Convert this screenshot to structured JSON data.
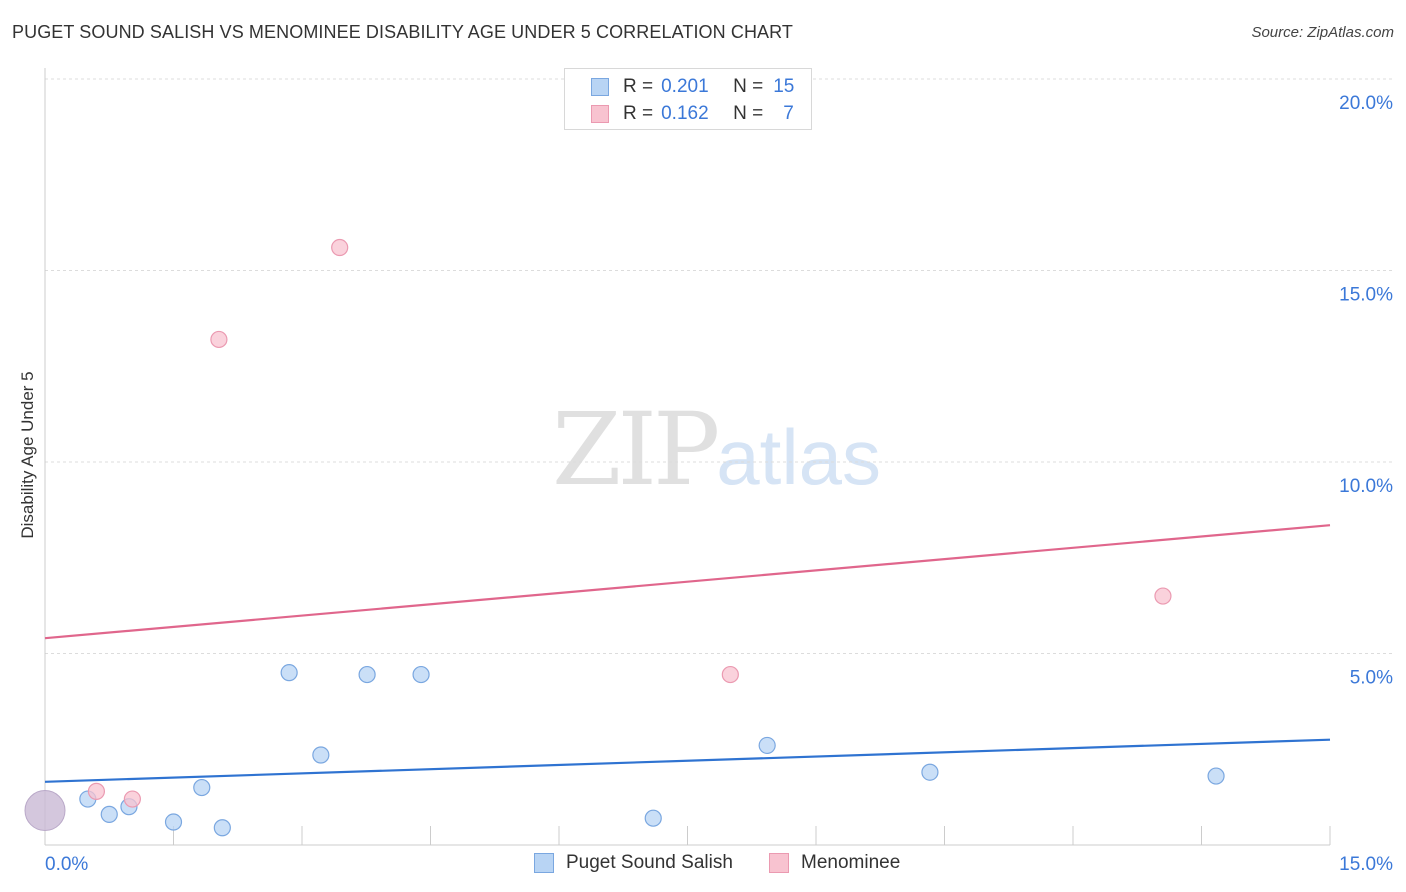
{
  "title": "PUGET SOUND SALISH VS MENOMINEE DISABILITY AGE UNDER 5 CORRELATION CHART",
  "source": "Source: ZipAtlas.com",
  "watermark": {
    "zip": "ZIP",
    "atlas": "atlas"
  },
  "legend": {
    "r_label": "R =",
    "n_label": "N =",
    "rows": [
      {
        "r": "0.201",
        "n": "15"
      },
      {
        "r": "0.162",
        "n": "7"
      }
    ]
  },
  "colors": {
    "blue_fill": "#b8d4f4",
    "blue_stroke": "#7aa7e0",
    "blue_line": "#2f73d1",
    "pink_fill": "#f8c3d0",
    "pink_stroke": "#eb9ab1",
    "pink_line": "#e0668c",
    "tick_label": "#3b78d8",
    "grid": "#dcdcdc"
  },
  "chart_data": {
    "type": "scatter",
    "title": "PUGET SOUND SALISH VS MENOMINEE DISABILITY AGE UNDER 5 CORRELATION CHART",
    "xlabel": "",
    "ylabel": "Disability Age Under 5",
    "xlim": [
      0,
      15
    ],
    "ylim": [
      0,
      20
    ],
    "x_tick_labels": [
      "0.0%",
      "15.0%"
    ],
    "y_ticks": [
      5,
      10,
      15,
      20
    ],
    "y_tick_labels": [
      "5.0%",
      "10.0%",
      "15.0%",
      "20.0%"
    ],
    "grid": "horizontal dashed",
    "legend_position": "top-center and bottom",
    "series": [
      {
        "name": "Puget Sound Salish",
        "color": "blue",
        "points": [
          [
            0.0,
            0.9
          ],
          [
            0.5,
            1.2
          ],
          [
            0.75,
            0.8
          ],
          [
            0.98,
            1.0
          ],
          [
            1.5,
            0.6
          ],
          [
            1.83,
            1.5
          ],
          [
            2.07,
            0.45
          ],
          [
            2.85,
            4.5
          ],
          [
            3.22,
            2.35
          ],
          [
            3.76,
            4.45
          ],
          [
            4.39,
            4.45
          ],
          [
            7.1,
            0.7
          ],
          [
            8.43,
            2.6
          ],
          [
            10.33,
            1.9
          ],
          [
            13.67,
            1.8
          ]
        ],
        "trend": {
          "x": [
            0,
            15
          ],
          "y": [
            1.65,
            2.75
          ]
        }
      },
      {
        "name": "Menominee",
        "color": "pink",
        "points": [
          [
            0.0,
            0.9
          ],
          [
            0.6,
            1.4
          ],
          [
            1.02,
            1.2
          ],
          [
            2.03,
            13.2
          ],
          [
            3.44,
            15.6
          ],
          [
            8.0,
            4.45
          ],
          [
            13.05,
            6.5
          ]
        ],
        "trend": {
          "x": [
            0,
            15
          ],
          "y": [
            5.4,
            8.35
          ]
        }
      }
    ]
  }
}
